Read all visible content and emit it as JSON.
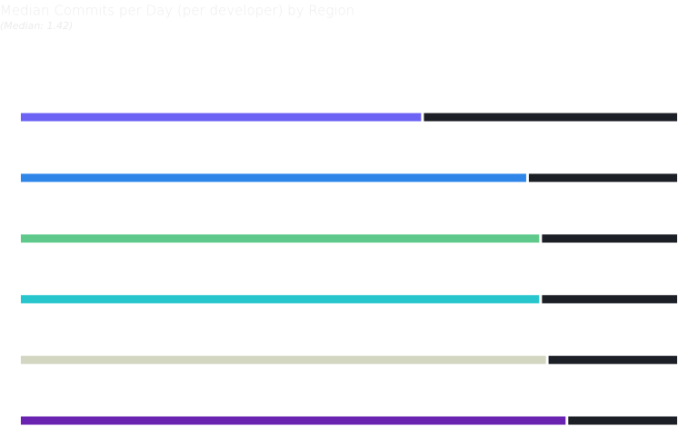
{
  "chart_data": {
    "type": "bar",
    "orientation": "horizontal",
    "title": "Median Commits per Day (per developer) by Region",
    "subtitle": "(Median: 1.42)",
    "categories": [
      null,
      null,
      null,
      null,
      null,
      null
    ],
    "values": [
      61,
      77,
      79,
      79,
      80,
      83
    ],
    "colors": [
      "#6c63f5",
      "#2f86e8",
      "#5ec98a",
      "#26c6cc",
      "#d3d6c0",
      "#6a22b0"
    ],
    "track_color": "#1c1f26",
    "xlim": [
      0,
      100
    ]
  }
}
